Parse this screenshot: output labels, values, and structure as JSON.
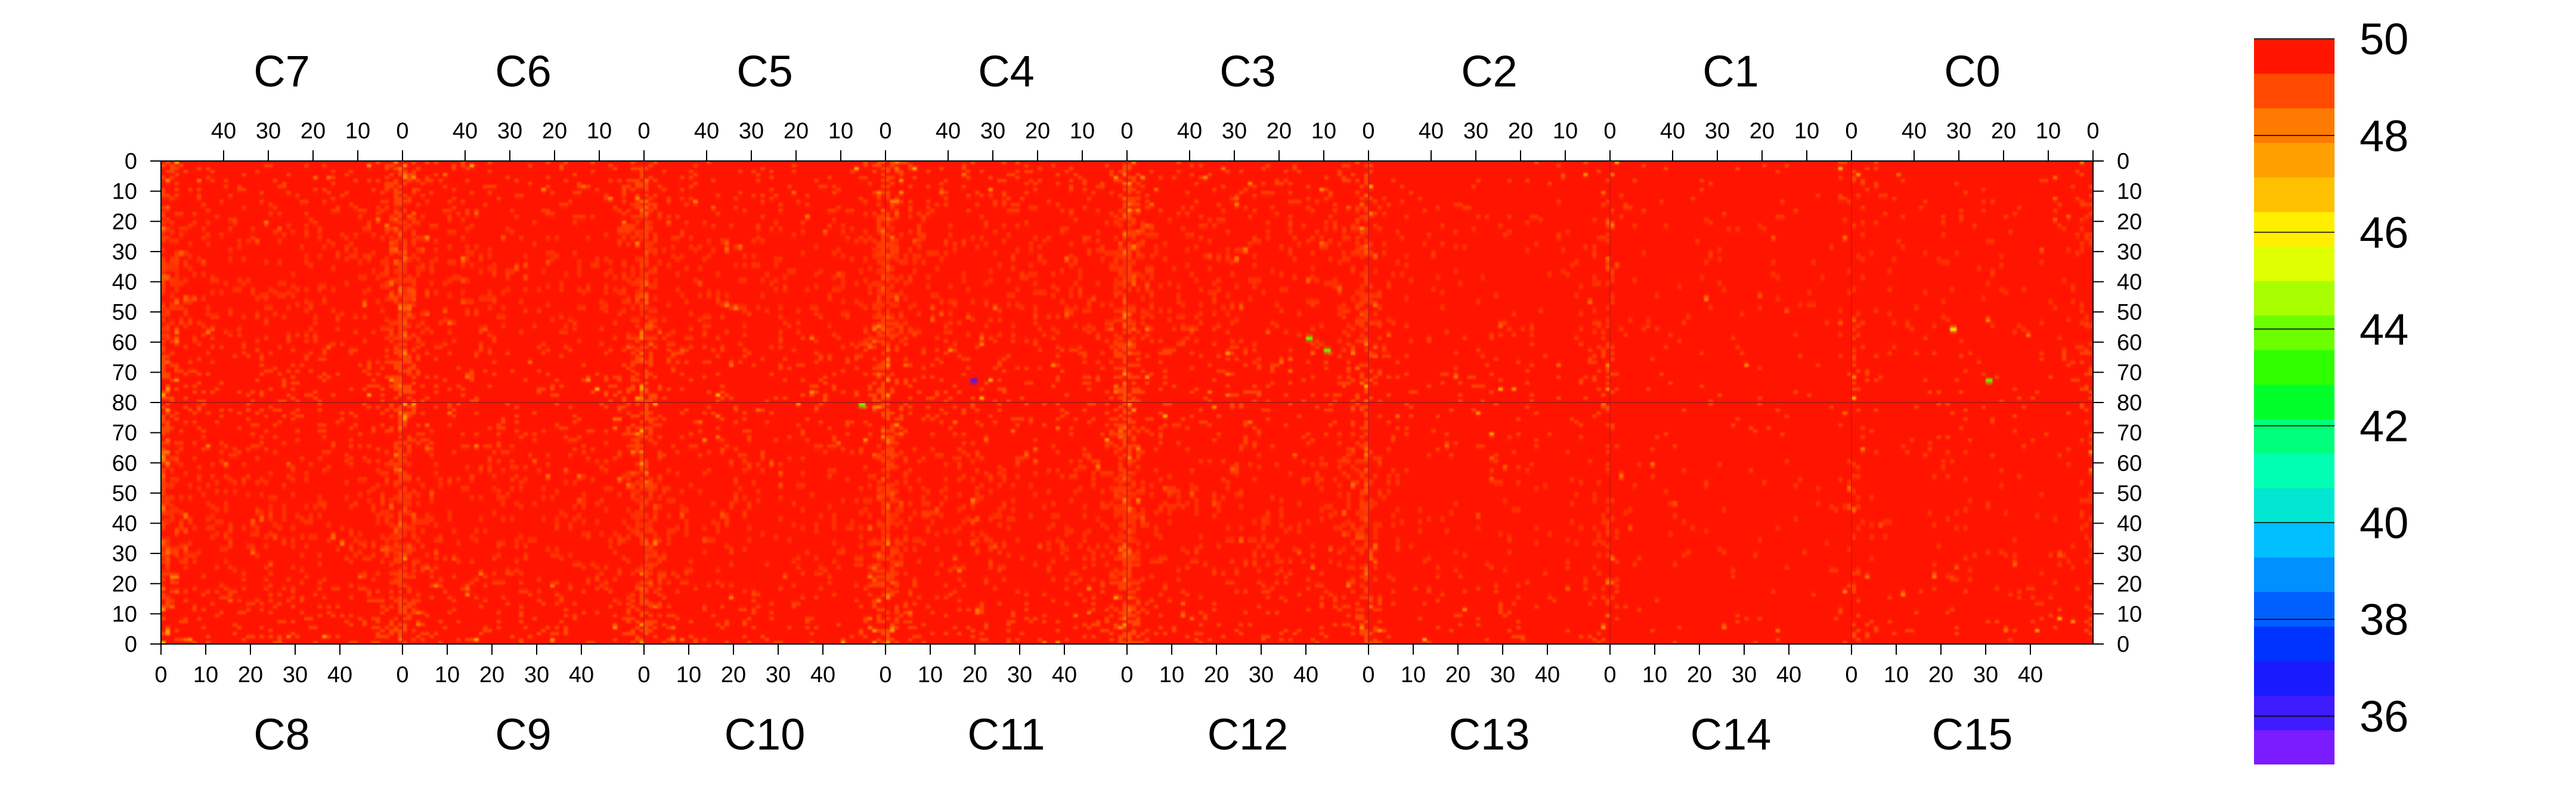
{
  "chart_data": {
    "type": "heatmap",
    "top_chamber_labels": [
      "C7",
      "C6",
      "C5",
      "C4",
      "C3",
      "C2",
      "C1",
      "C0"
    ],
    "bottom_chamber_labels": [
      "C8",
      "C9",
      "C10",
      "C11",
      "C12",
      "C13",
      "C14",
      "C15"
    ],
    "top_x_ticks": [
      "40",
      "30",
      "20",
      "10",
      "0"
    ],
    "bottom_x_ticks": [
      "0",
      "10",
      "20",
      "30",
      "40"
    ],
    "y_ticks_upper": [
      "0",
      "10",
      "20",
      "30",
      "40",
      "50",
      "60",
      "70",
      "80"
    ],
    "y_ticks_lower": [
      "70",
      "60",
      "50",
      "40",
      "30",
      "20",
      "10",
      "0"
    ],
    "columns_per_chamber": 54,
    "rows_per_half": 80,
    "color_scale": {
      "min": 35,
      "max": 50,
      "tick_labels": [
        "50",
        "48",
        "46",
        "44",
        "42",
        "40",
        "38",
        "36"
      ],
      "colors": [
        "#7a1cff",
        "#3e1cff",
        "#1a1aff",
        "#0033ff",
        "#0060ff",
        "#0090ff",
        "#00bfff",
        "#00e6d2",
        "#00ffb2",
        "#00ff7a",
        "#00ff2a",
        "#30ff00",
        "#6cff00",
        "#a8ff00",
        "#e0ff00",
        "#ffee00",
        "#ffc000",
        "#ff9f00",
        "#ff7a00",
        "#ff4a00",
        "#ff1400"
      ]
    },
    "dominant_value": 50,
    "chamber_noise_level": [
      0.55,
      0.5,
      0.45,
      0.55,
      0.5,
      0.2,
      0.1,
      0.15
    ],
    "notable_low_cells": [
      {
        "chamber": "C4",
        "row": 72,
        "col": 19,
        "value": 36
      },
      {
        "chamber": "C3",
        "row": 58,
        "col": 40,
        "value": 44
      },
      {
        "chamber": "C3",
        "row": 62,
        "col": 44,
        "value": 44
      },
      {
        "chamber": "C0",
        "row": 55,
        "col": 22,
        "value": 45
      },
      {
        "chamber": "C0",
        "row": 72,
        "col": 30,
        "value": 44
      },
      {
        "chamber": "C5",
        "row": 80,
        "col": 48,
        "value": 44
      }
    ]
  }
}
